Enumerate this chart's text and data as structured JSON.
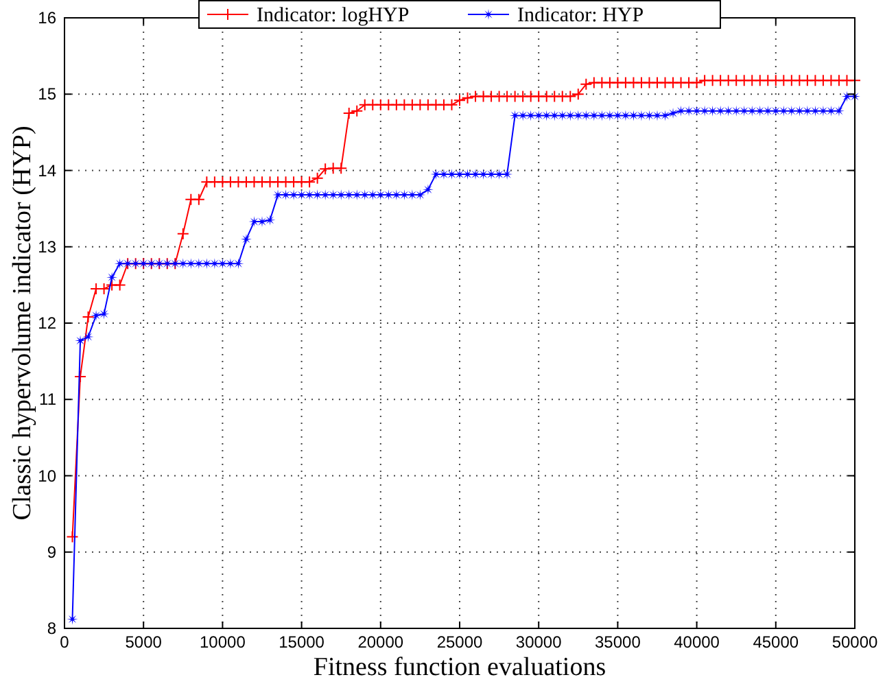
{
  "chart_data": {
    "type": "line",
    "xlabel": "Fitness function evaluations",
    "ylabel": "Classic hypervolume indicator (HYP)",
    "xlim": [
      0,
      50000
    ],
    "ylim": [
      8,
      16
    ],
    "xticks": [
      0,
      5000,
      10000,
      15000,
      20000,
      25000,
      30000,
      35000,
      40000,
      45000,
      50000
    ],
    "yticks": [
      8,
      9,
      10,
      11,
      12,
      13,
      14,
      15,
      16
    ],
    "grid": true,
    "legend": "top",
    "line_style": "solid",
    "x": [
      500,
      1000,
      1500,
      2000,
      2500,
      3000,
      3500,
      4000,
      4500,
      5000,
      5500,
      6000,
      6500,
      7000,
      7500,
      8000,
      8500,
      9000,
      9500,
      10000,
      10500,
      11000,
      11500,
      12000,
      12500,
      13000,
      13500,
      14000,
      14500,
      15000,
      15500,
      16000,
      16500,
      17000,
      17500,
      18000,
      18500,
      19000,
      19500,
      20000,
      20500,
      21000,
      21500,
      22000,
      22500,
      23000,
      23500,
      24000,
      24500,
      25000,
      25500,
      26000,
      26500,
      27000,
      27500,
      28000,
      28500,
      29000,
      29500,
      30000,
      30500,
      31000,
      31500,
      32000,
      32500,
      33000,
      33500,
      34000,
      34500,
      35000,
      35500,
      36000,
      36500,
      37000,
      37500,
      38000,
      38500,
      39000,
      39500,
      40000,
      40500,
      41000,
      41500,
      42000,
      42500,
      43000,
      43500,
      44000,
      44500,
      45000,
      45500,
      46000,
      46500,
      47000,
      47500,
      48000,
      48500,
      49000,
      49500,
      50000
    ],
    "series": [
      {
        "name": "Indicator: logHYP",
        "color": "#ff0000",
        "marker": "cross",
        "values": [
          9.2,
          11.3,
          12.08,
          12.45,
          12.45,
          12.5,
          12.5,
          12.78,
          12.78,
          12.78,
          12.78,
          12.78,
          12.78,
          12.78,
          13.17,
          13.62,
          13.62,
          13.85,
          13.85,
          13.85,
          13.85,
          13.85,
          13.85,
          13.85,
          13.85,
          13.85,
          13.85,
          13.85,
          13.85,
          13.85,
          13.85,
          13.9,
          14.02,
          14.03,
          14.03,
          14.75,
          14.78,
          14.86,
          14.86,
          14.86,
          14.86,
          14.86,
          14.86,
          14.86,
          14.86,
          14.86,
          14.86,
          14.86,
          14.86,
          14.92,
          14.95,
          14.97,
          14.97,
          14.97,
          14.97,
          14.97,
          14.97,
          14.97,
          14.97,
          14.97,
          14.97,
          14.97,
          14.97,
          14.97,
          15.0,
          15.13,
          15.15,
          15.15,
          15.15,
          15.15,
          15.15,
          15.15,
          15.15,
          15.15,
          15.15,
          15.15,
          15.15,
          15.15,
          15.15,
          15.15,
          15.18,
          15.18,
          15.18,
          15.18,
          15.18,
          15.18,
          15.18,
          15.18,
          15.18,
          15.18,
          15.18,
          15.18,
          15.18,
          15.18,
          15.18,
          15.18,
          15.18,
          15.18,
          15.18,
          15.18
        ]
      },
      {
        "name": "Indicator: HYP",
        "color": "#0000ff",
        "marker": "star",
        "values": [
          8.12,
          11.77,
          11.82,
          12.1,
          12.12,
          12.6,
          12.78,
          12.78,
          12.78,
          12.78,
          12.78,
          12.78,
          12.78,
          12.78,
          12.78,
          12.78,
          12.78,
          12.78,
          12.78,
          12.78,
          12.78,
          12.78,
          13.1,
          13.33,
          13.33,
          13.35,
          13.68,
          13.68,
          13.68,
          13.68,
          13.68,
          13.68,
          13.68,
          13.68,
          13.68,
          13.68,
          13.68,
          13.68,
          13.68,
          13.68,
          13.68,
          13.68,
          13.68,
          13.68,
          13.68,
          13.75,
          13.95,
          13.95,
          13.95,
          13.95,
          13.95,
          13.95,
          13.95,
          13.95,
          13.95,
          13.95,
          14.72,
          14.72,
          14.72,
          14.72,
          14.72,
          14.72,
          14.72,
          14.72,
          14.72,
          14.72,
          14.72,
          14.72,
          14.72,
          14.72,
          14.72,
          14.72,
          14.72,
          14.72,
          14.72,
          14.72,
          14.75,
          14.78,
          14.78,
          14.78,
          14.78,
          14.78,
          14.78,
          14.78,
          14.78,
          14.78,
          14.78,
          14.78,
          14.78,
          14.78,
          14.78,
          14.78,
          14.78,
          14.78,
          14.78,
          14.78,
          14.78,
          14.78,
          14.97,
          14.97
        ]
      }
    ]
  }
}
